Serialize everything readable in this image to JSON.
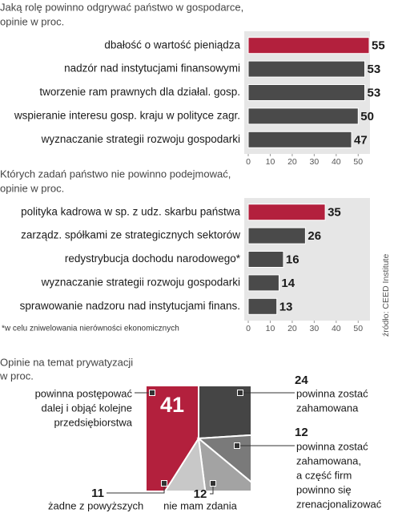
{
  "source": "źródło: CEED Institute",
  "chart_data": [
    {
      "type": "bar",
      "orientation": "horizontal",
      "title": "Jaką rolę powinno odgrywać państwo w gospodarce,",
      "subtitle": "opinie w proc.",
      "categories": [
        "dbałość o wartość pieniądza",
        "nadzór nad instytucjami finansowymi",
        "tworzenie ram prawnych dla działal. gosp.",
        "wspieranie interesu gosp. kraju w polityce zagr.",
        "wyznaczanie strategii rozwoju gospodarki"
      ],
      "values": [
        55,
        53,
        53,
        50,
        47
      ],
      "colors": [
        "#b3203d",
        "#4a4a4a",
        "#4a4a4a",
        "#4a4a4a",
        "#4a4a4a"
      ],
      "xlim": [
        0,
        55
      ],
      "xticks": [
        0,
        10,
        20,
        30,
        40,
        50
      ]
    },
    {
      "type": "bar",
      "orientation": "horizontal",
      "title": "Których zadań państwo nie powinno podejmować,",
      "subtitle": "opinie  w proc.",
      "categories": [
        "polityka kadrowa w sp. z udz. skarbu państwa",
        "zarządz. spółkami ze strategicznych sektorów",
        "redystrybucja dochodu narodowego*",
        "wyznaczanie strategii rozwoju gospodarki",
        "sprawowanie nadzoru nad instytucjami finans."
      ],
      "values": [
        35,
        26,
        16,
        14,
        13
      ],
      "colors": [
        "#b3203d",
        "#4a4a4a",
        "#4a4a4a",
        "#4a4a4a",
        "#4a4a4a"
      ],
      "xlim": [
        0,
        55
      ],
      "xticks": [
        0,
        10,
        20,
        30,
        40,
        50
      ],
      "footnote": "*w celu zniwelowania nierówności ekonomicznych"
    },
    {
      "type": "pie",
      "title": "Opinie na temat prywatyzacji",
      "subtitle": "w proc.",
      "labels": [
        [
          "powinna postępować",
          "dalej i objąć kolejne",
          "przedsiębiorstwa"
        ],
        [
          "powinna zostać",
          "zahamowana"
        ],
        [
          "powinna zostać",
          "zahamowana,",
          "a część firm",
          "powinno się",
          "zrenacjonalizować"
        ],
        [
          "nie mam zdania"
        ],
        [
          "żadne z powyższych"
        ]
      ],
      "values": [
        41,
        24,
        12,
        12,
        11
      ],
      "colors": [
        "#b3203d",
        "#454545",
        "#7a7a7a",
        "#a3a3a3",
        "#c8c8c8"
      ]
    }
  ]
}
